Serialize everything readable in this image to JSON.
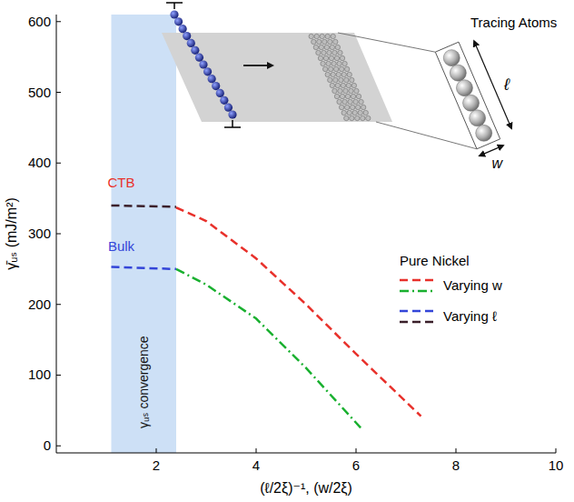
{
  "chart_data": {
    "type": "line",
    "xlabel": "(ℓ/2ξ)⁻¹, (w/2ξ)",
    "ylabel": "γ̄ᵤₛ (mJ/m²)",
    "xlim": [
      0,
      10
    ],
    "xticks": [
      2,
      4,
      6,
      8,
      10
    ],
    "ylim": [
      -10,
      610
    ],
    "yticks": [
      0,
      100,
      200,
      300,
      400,
      500,
      600
    ],
    "legend": "right",
    "legend_title": "Pure Nickel",
    "series": [
      {
        "name": "Varying w",
        "color": "#e8302a",
        "line_style": "dashed",
        "x": [
          2.4,
          3,
          4,
          5,
          6,
          7.3
        ],
        "values": [
          337,
          318,
          265,
          200,
          130,
          42
        ]
      },
      {
        "name": "Varying w",
        "color": "#19b02f",
        "line_style": "dashdot",
        "x": [
          2.4,
          3,
          4,
          5,
          6.1
        ],
        "values": [
          250,
          228,
          180,
          110,
          25
        ]
      },
      {
        "name": "Varying ℓ",
        "color": "#3345d8",
        "line_style": "dashed",
        "x": [
          1.1,
          2.4
        ],
        "values": [
          253,
          250
        ]
      },
      {
        "name": "Varying ℓ",
        "color": "#3a1f2a",
        "line_style": "dashed",
        "x": [
          1.1,
          2.4
        ],
        "values": [
          340,
          338
        ]
      }
    ],
    "annotations": [
      {
        "text": "CTB",
        "x": 1.3,
        "y": 365,
        "color": "#e8302a"
      },
      {
        "text": "Bulk",
        "x": 1.3,
        "y": 275,
        "color": "#3345d8"
      }
    ],
    "band": {
      "x": [
        1.1,
        2.4
      ],
      "label": "γᵤₛ convergence",
      "color": "#cde0f6"
    },
    "inset": {
      "label": "Tracing Atoms",
      "length_label": "ℓ",
      "width_label": "w"
    }
  }
}
